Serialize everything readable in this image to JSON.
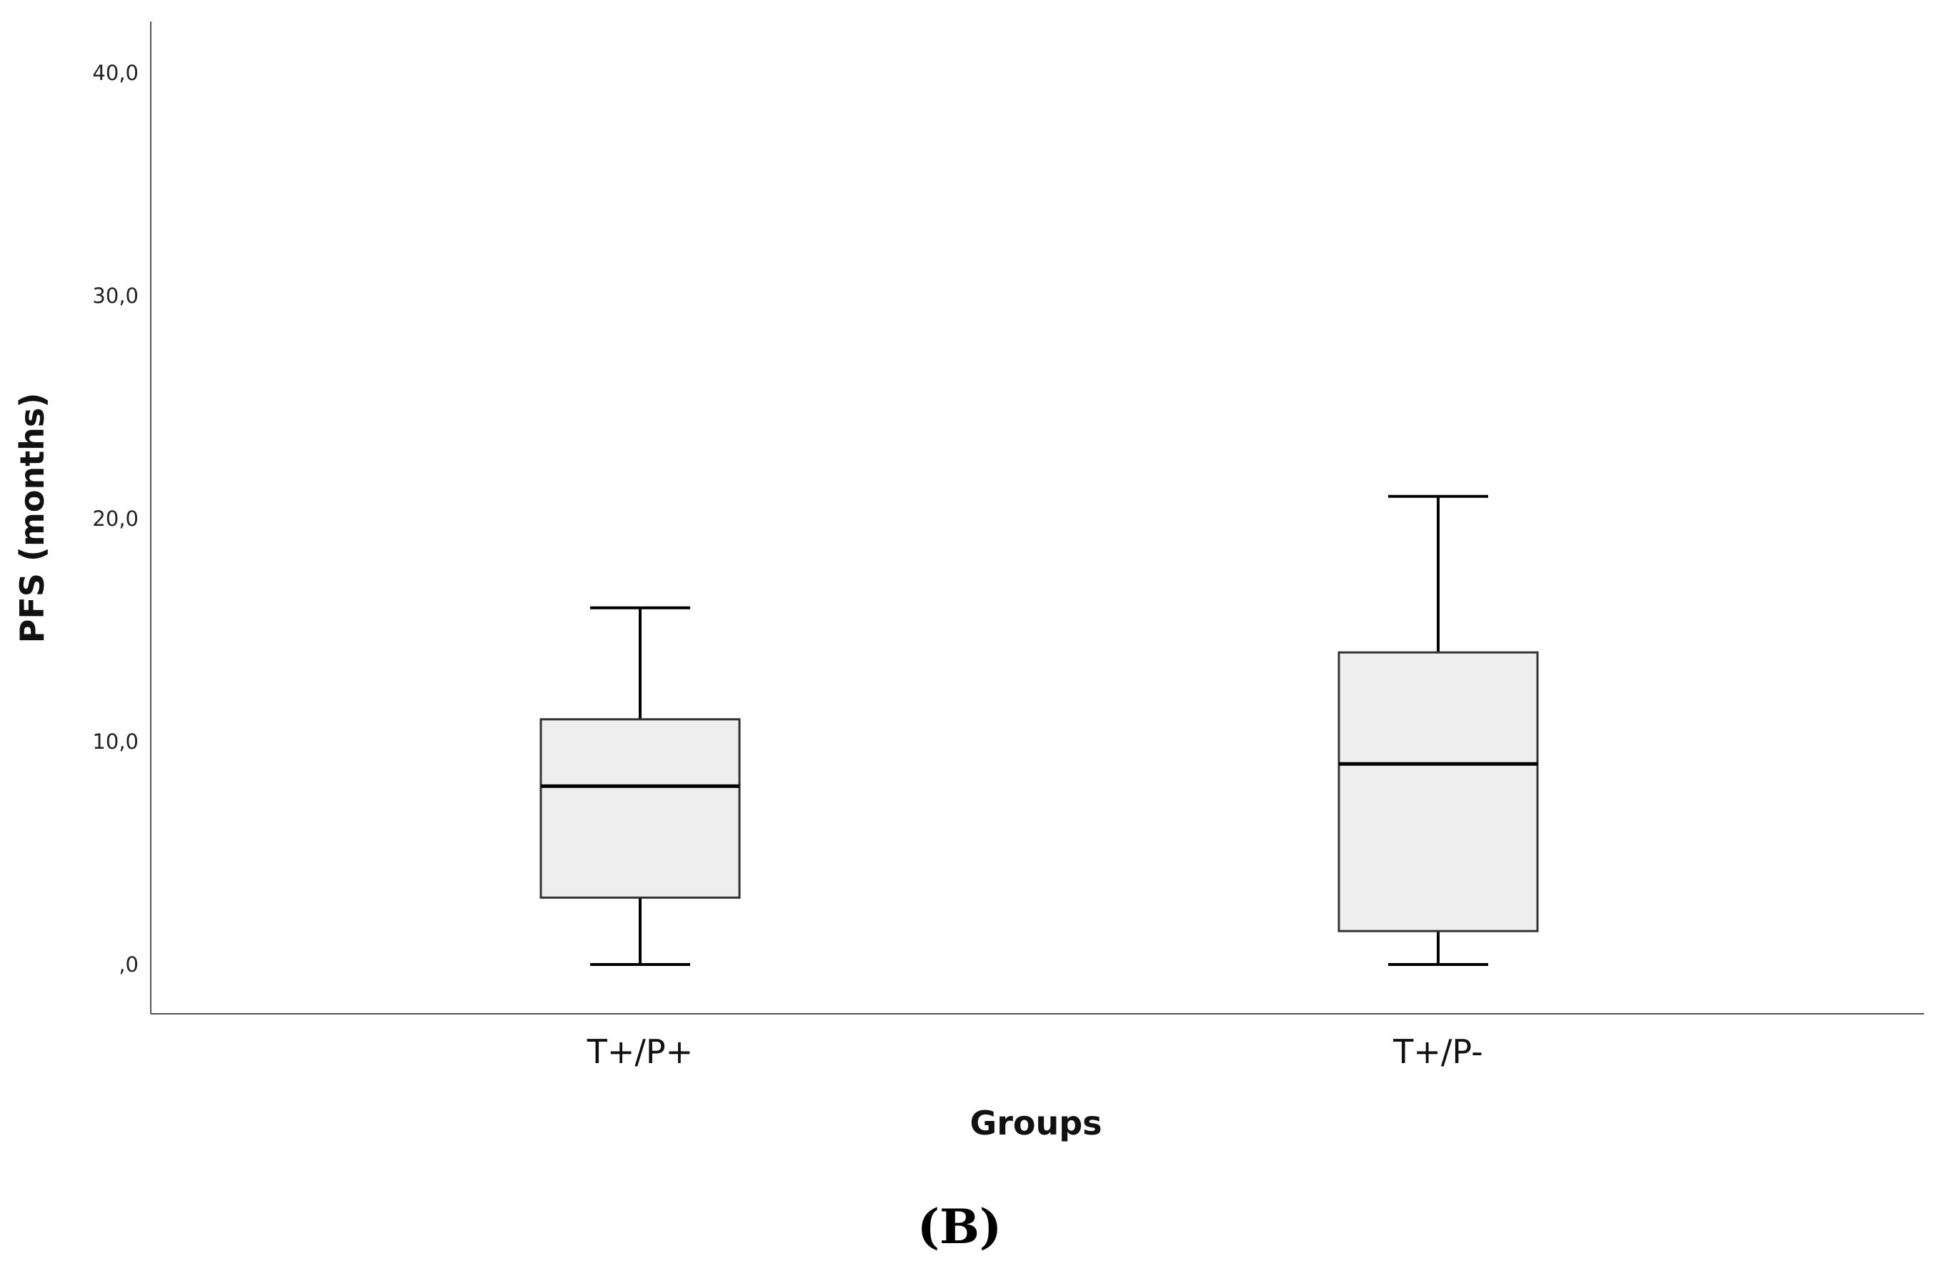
{
  "chart_data": {
    "type": "boxplot",
    "title": "",
    "xlabel": "Groups",
    "ylabel": "PFS (months)",
    "ylim": [
      -2,
      42
    ],
    "y_ticks": [
      0,
      10,
      20,
      30,
      40
    ],
    "y_tick_labels": [
      ",0",
      "10,0",
      "20,0",
      "30,0",
      "40,0"
    ],
    "categories": [
      "T+/P+",
      "T+/P-"
    ],
    "boxes": [
      {
        "category": "T+/P+",
        "min": 0,
        "q1": 3,
        "median": 8,
        "q3": 11,
        "max": 16
      },
      {
        "category": "T+/P-",
        "min": 0,
        "q1": 1.5,
        "median": 9,
        "q3": 14,
        "max": 21
      }
    ],
    "box_fill": "#eeeeee",
    "grid": false,
    "panel_label": "(B)"
  }
}
